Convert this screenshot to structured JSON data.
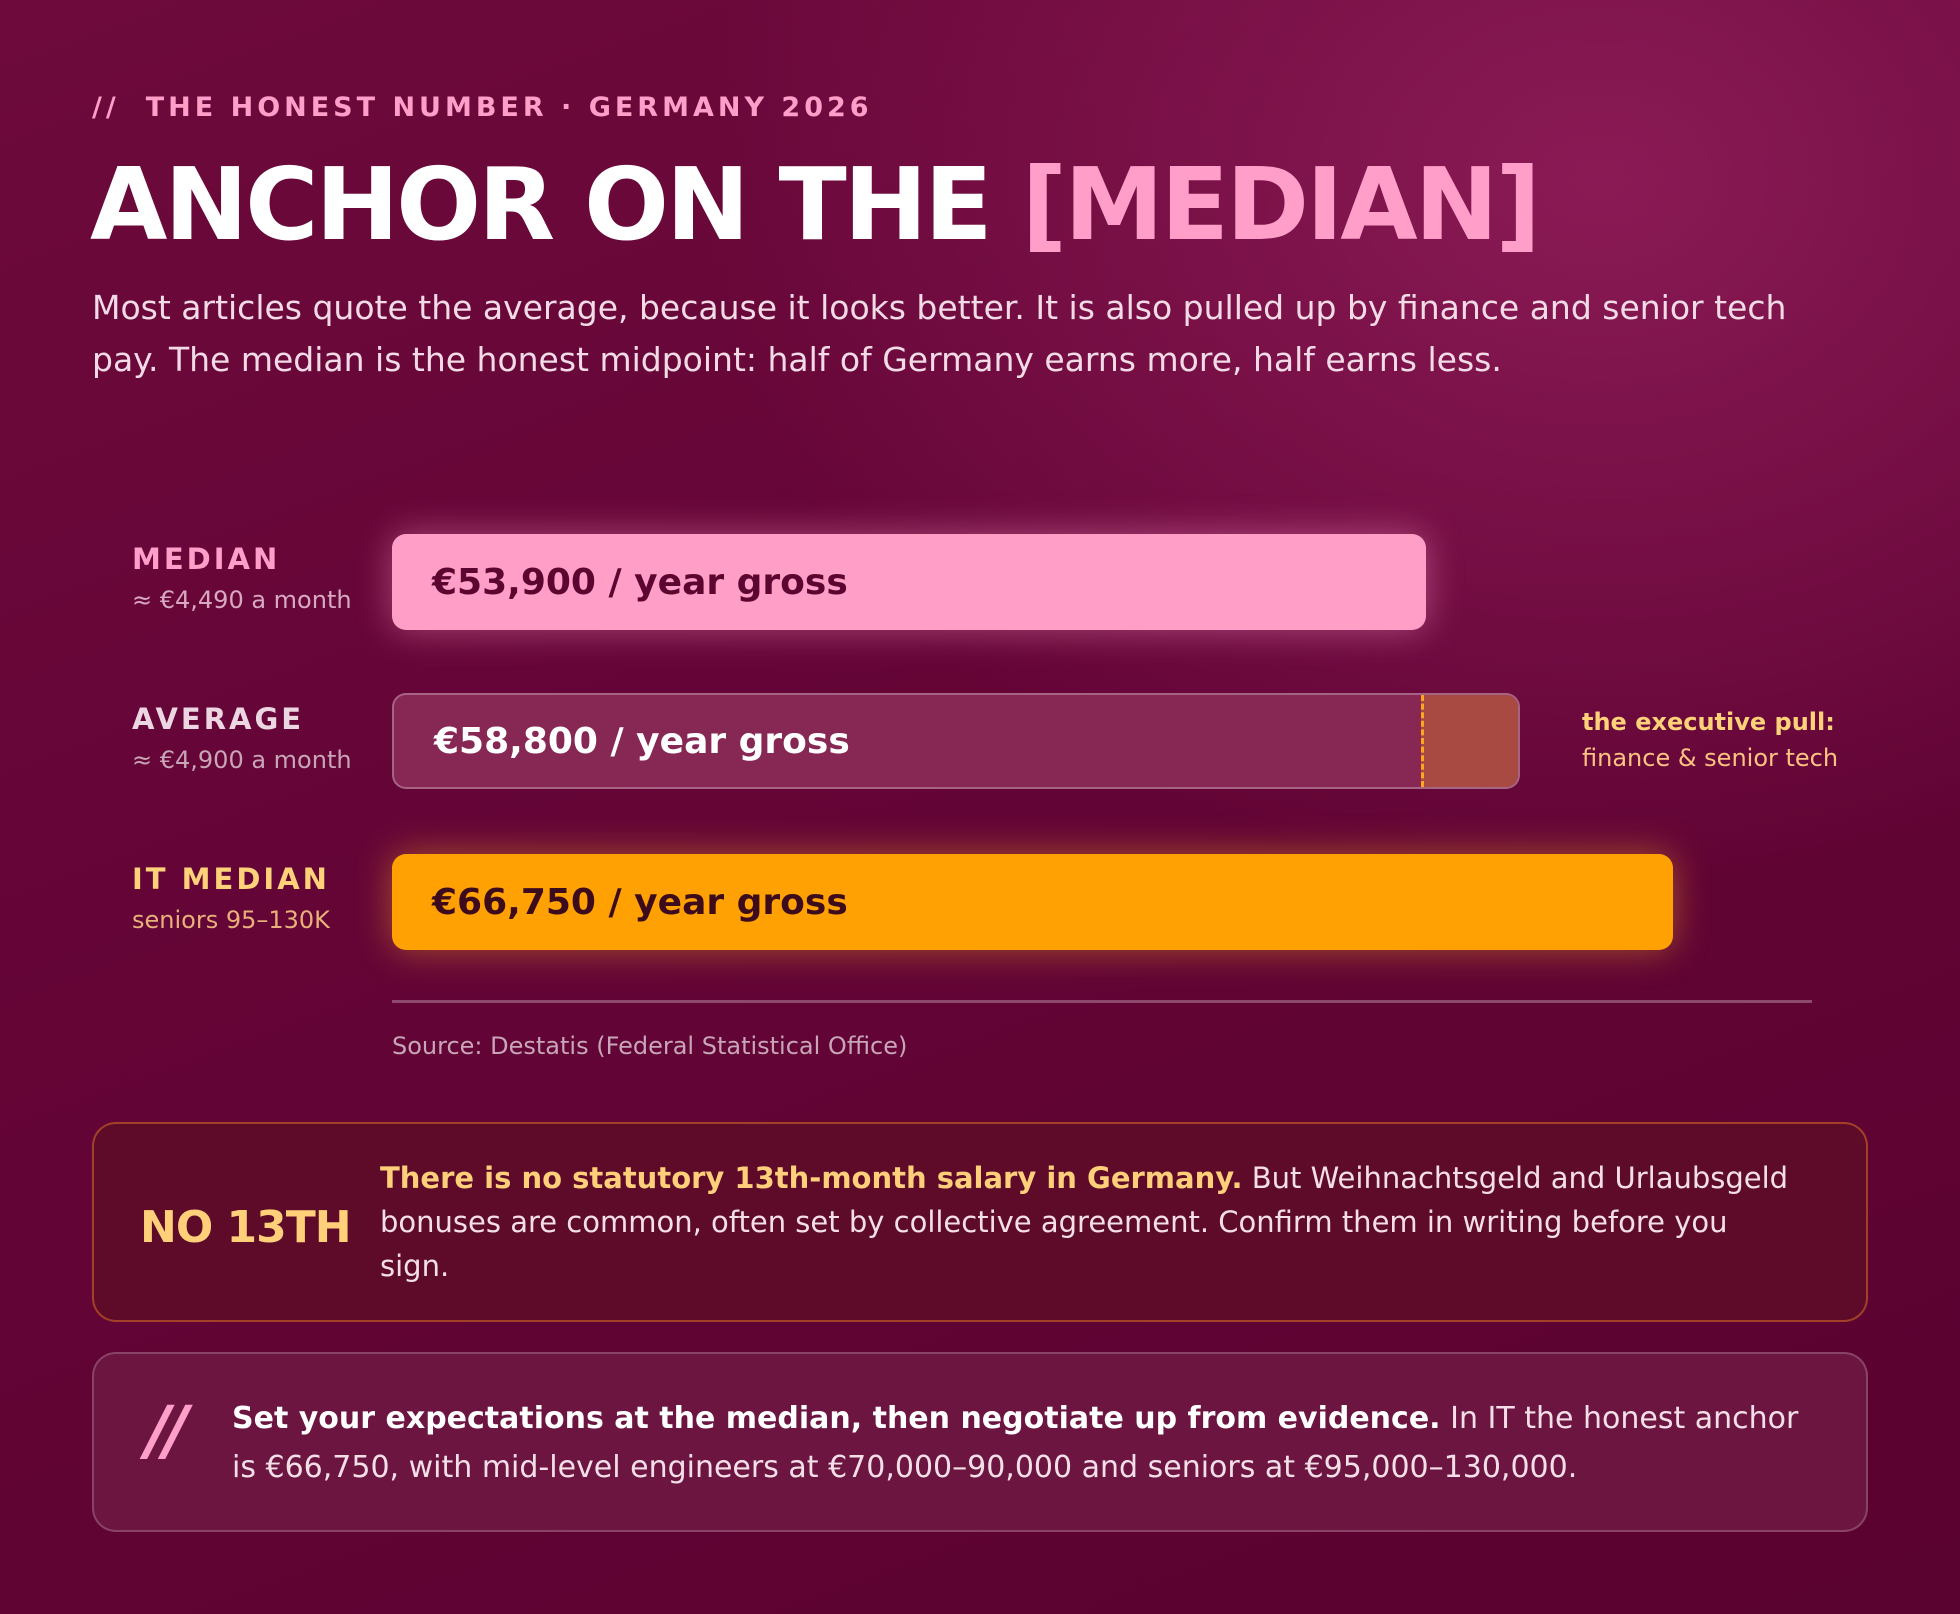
{
  "header": {
    "kicker_slashes": "//",
    "kicker": "THE HONEST NUMBER · GERMANY 2026",
    "headline_main": "ANCHOR ON THE ",
    "headline_accent": "[MEDIAN]",
    "intro": "Most articles quote the average, because it looks better. It is also pulled up by finance and senior tech pay. The median is the honest midpoint: half of Germany earns more, half earns less."
  },
  "chart_data": {
    "type": "bar",
    "orientation": "horizontal",
    "categories": [
      "MEDIAN",
      "AVERAGE",
      "IT MEDIAN"
    ],
    "values": [
      53900,
      58800,
      66750
    ],
    "unit": "€ / year gross",
    "colors": [
      "#ff9ec6",
      "#862754",
      "#ffa102"
    ],
    "bars": [
      {
        "name": "MEDIAN",
        "value": 53900,
        "bar_label": "€53,900 / year gross",
        "sublabel": "≈ €4,490 a month",
        "label_color": "#ff9ec8",
        "sub_color": "#d9a8c1"
      },
      {
        "name": "AVERAGE",
        "value": 58800,
        "bar_label": "€58,800 / year gross",
        "sublabel": "≈ €4,900 a month",
        "label_color": "#ecd6e1",
        "sub_color": "#c9a5b8"
      },
      {
        "name": "IT MEDIAN",
        "value": 66750,
        "bar_label": "€66,750 / year gross",
        "sublabel": "seniors 95–130K",
        "label_color": "#ffd27a",
        "sub_color": "#e8b07a"
      }
    ],
    "highlight_segment": {
      "bar": "AVERAGE",
      "from": 53900,
      "to": 58800,
      "color": "#a94a42"
    },
    "annotation": {
      "title": "the executive pull:",
      "text": "finance & senior tech"
    },
    "source": "Source: Destatis (Federal Statistical Office)",
    "xlim": [
      0,
      74000
    ],
    "grid": false,
    "legend": "none"
  },
  "note_card": {
    "tag": "NO 13TH",
    "lead": "There is no statutory 13th-month salary in Germany.",
    "text": " But Weihnachtsgeld and Urlaubsgeld bonuses are common, often set by collective agreement. Confirm them in writing before you sign."
  },
  "quote_card": {
    "mark": "//",
    "lead": "Set your expectations at the median, then negotiate up from evidence.",
    "text": " In IT the honest anchor is €66,750, with mid-level engineers at €70,000–90,000 and seniors at €95,000–130,000."
  }
}
